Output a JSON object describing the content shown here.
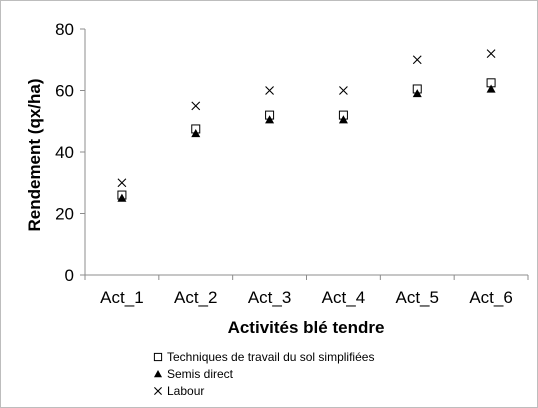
{
  "chart_data": {
    "type": "scatter",
    "title": "",
    "xlabel": "Activités blé tendre",
    "ylabel": "Rendement (qx/ha)",
    "categories": [
      "Act_1",
      "Act_2",
      "Act_3",
      "Act_4",
      "Act_5",
      "Act_6"
    ],
    "ylim": [
      0,
      80
    ],
    "yticks": [
      0,
      20,
      40,
      60,
      80
    ],
    "grid": false,
    "legend_position": "bottom-left",
    "series": [
      {
        "name": "Techniques de travail du sol simplifiées",
        "marker": "open-square",
        "values": [
          26,
          47.5,
          52,
          52,
          60.5,
          62.5
        ]
      },
      {
        "name": "Semis direct",
        "marker": "filled-triangle",
        "values": [
          25,
          46,
          50.5,
          50.5,
          59,
          60.5
        ]
      },
      {
        "name": "Labour",
        "marker": "cross",
        "values": [
          30,
          55,
          60,
          60,
          70,
          72
        ]
      }
    ]
  }
}
